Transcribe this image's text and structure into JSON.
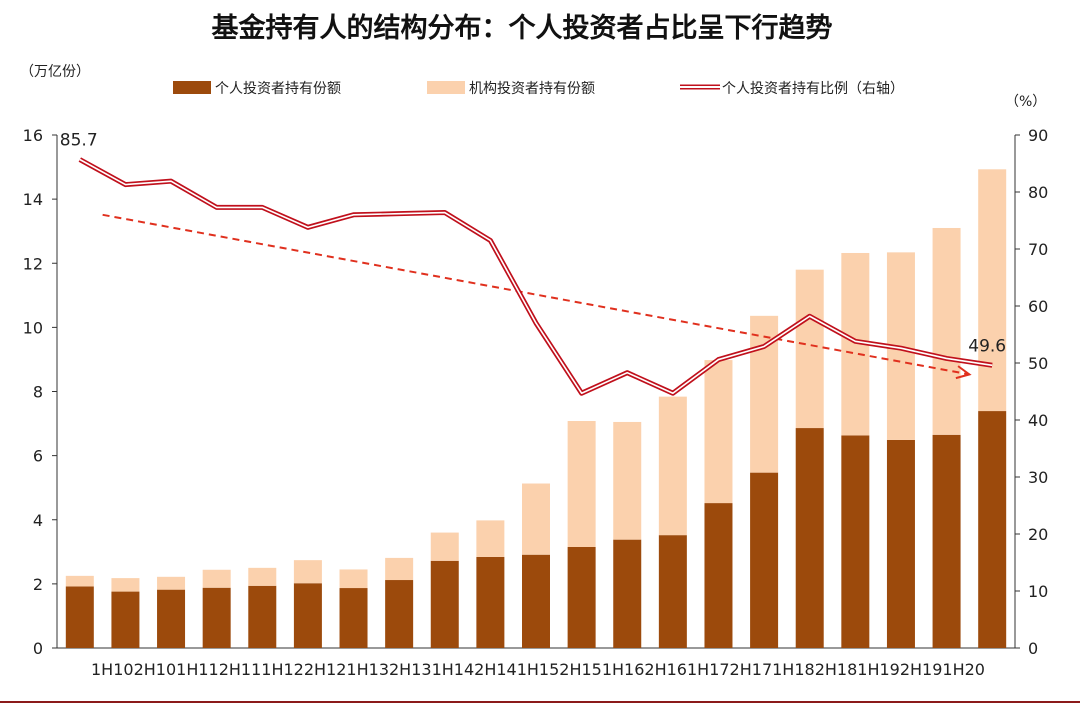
{
  "chart_data": {
    "type": "bar",
    "title": "基金持有人的结构分布：个人投资者占比呈下行趋势",
    "left_unit": "（万亿份）",
    "right_unit": "（%）",
    "y_left_range": [
      0,
      16
    ],
    "y_left_ticks": [
      0,
      2,
      4,
      6,
      8,
      10,
      12,
      14,
      16
    ],
    "y_right_range": [
      0,
      90
    ],
    "y_right_ticks": [
      0,
      10,
      20,
      30,
      40,
      50,
      60,
      70,
      80,
      90
    ],
    "x_axis_text": "1H102H101H112H111H122H121H132H131H142H141H152H151H162H161H172H171H182H181H192H191H20",
    "categories": [
      "2010H1",
      "2010H2",
      "2011H1",
      "2011H2",
      "2012H1",
      "2012H2",
      "2013H1",
      "2013H2",
      "2014H1",
      "2014H2",
      "2015H1",
      "2015H2",
      "2016H1",
      "2016H2",
      "2017H1",
      "2017H2",
      "2018H1",
      "2018H2",
      "2019H1",
      "2019H2",
      "2020H1"
    ],
    "legend": {
      "placement": "top",
      "items": [
        "个人投资者持有份额",
        "机构投资者持有份额",
        "个人投资者持有比例（右轴）"
      ]
    },
    "series": [
      {
        "name": "个人投资者持有份额",
        "type": "stacked-bar",
        "axis": "left",
        "color": "#9c4a0c",
        "values": [
          1.92,
          1.76,
          1.82,
          1.88,
          1.94,
          2.02,
          1.87,
          2.12,
          2.72,
          2.84,
          2.91,
          3.15,
          3.38,
          3.52,
          4.52,
          5.47,
          6.86,
          6.63,
          6.49,
          6.65,
          7.39
        ]
      },
      {
        "name": "机构投资者持有份额",
        "type": "stacked-bar",
        "axis": "left",
        "color": "#fbd1ad",
        "values": [
          0.33,
          0.42,
          0.4,
          0.56,
          0.56,
          0.72,
          0.58,
          0.69,
          0.88,
          1.14,
          2.22,
          3.93,
          3.67,
          4.32,
          4.46,
          4.89,
          4.94,
          5.69,
          5.85,
          6.45,
          7.54
        ]
      },
      {
        "name": "个人投资者持有比例（右轴）",
        "type": "line",
        "axis": "right",
        "color": "#c0101c",
        "values": [
          85.7,
          81.3,
          81.9,
          77.3,
          77.3,
          73.8,
          76.0,
          76.2,
          76.4,
          71.5,
          57.0,
          44.7,
          48.3,
          44.7,
          50.6,
          52.9,
          58.2,
          53.8,
          52.6,
          50.8,
          49.6
        ]
      }
    ],
    "data_labels": [
      {
        "series": 2,
        "index": 0,
        "text": "85.7"
      },
      {
        "series": 2,
        "index": 20,
        "text": "49.6"
      }
    ],
    "trend_arrow": {
      "color": "#e0301e",
      "from": {
        "index": 0.5,
        "value": 76.0
      },
      "to": {
        "index": 19.5,
        "value": 48.0
      }
    }
  }
}
